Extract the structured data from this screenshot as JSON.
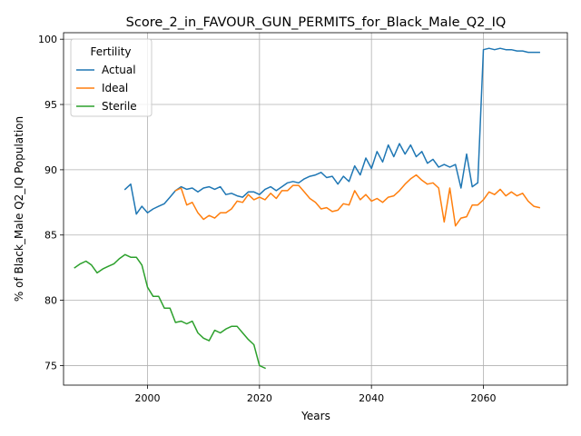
{
  "chart_data": {
    "type": "line",
    "title": "Score_2_in_FAVOUR_GUN_PERMITS_for_Black_Male_Q2_IQ",
    "xlabel": "Years",
    "ylabel": "% of Black_Male Q2_IQ Population",
    "xlim": [
      1985,
      2075
    ],
    "ylim": [
      73.5,
      100.5
    ],
    "xticks": [
      2000,
      2020,
      2040,
      2060
    ],
    "yticks": [
      75,
      80,
      85,
      90,
      95,
      100
    ],
    "grid": true,
    "legend": {
      "title": "Fertility",
      "placement": "top-left"
    },
    "series": [
      {
        "name": "Actual",
        "color": "#1f77b4",
        "x": [
          1996,
          1997,
          1998,
          1999,
          2000,
          2001,
          2002,
          2003,
          2004,
          2005,
          2006,
          2007,
          2008,
          2009,
          2010,
          2011,
          2012,
          2013,
          2014,
          2015,
          2016,
          2017,
          2018,
          2019,
          2020,
          2021,
          2022,
          2023,
          2024,
          2025,
          2026,
          2027,
          2028,
          2029,
          2030,
          2031,
          2032,
          2033,
          2034,
          2035,
          2036,
          2037,
          2038,
          2039,
          2040,
          2041,
          2042,
          2043,
          2044,
          2045,
          2046,
          2047,
          2048,
          2049,
          2050,
          2051,
          2052,
          2053,
          2054,
          2055,
          2056,
          2057,
          2058,
          2059,
          2060,
          2061,
          2062,
          2063,
          2064,
          2065,
          2066,
          2067,
          2068,
          2069,
          2070
        ],
        "values": [
          88.5,
          88.9,
          86.6,
          87.2,
          86.7,
          87.0,
          87.2,
          87.4,
          87.9,
          88.4,
          88.7,
          88.5,
          88.6,
          88.3,
          88.6,
          88.7,
          88.5,
          88.7,
          88.1,
          88.2,
          88.0,
          87.9,
          88.3,
          88.3,
          88.1,
          88.5,
          88.7,
          88.4,
          88.7,
          89.0,
          89.1,
          89.0,
          89.3,
          89.5,
          89.6,
          89.8,
          89.4,
          89.5,
          88.9,
          89.5,
          89.1,
          90.3,
          89.6,
          90.9,
          90.1,
          91.4,
          90.6,
          91.9,
          91.0,
          92.0,
          91.2,
          91.9,
          91.0,
          91.4,
          90.5,
          90.8,
          90.2,
          90.4,
          90.2,
          90.4,
          88.6,
          91.2,
          88.7,
          89.0,
          99.2,
          99.3,
          99.2,
          99.3,
          99.2,
          99.2,
          99.1,
          99.1,
          99.0,
          99.0,
          99.0
        ]
      },
      {
        "name": "Ideal",
        "color": "#ff7f0e",
        "x": [
          2005,
          2006,
          2007,
          2008,
          2009,
          2010,
          2011,
          2012,
          2013,
          2014,
          2015,
          2016,
          2017,
          2018,
          2019,
          2020,
          2021,
          2022,
          2023,
          2024,
          2025,
          2026,
          2027,
          2028,
          2029,
          2030,
          2031,
          2032,
          2033,
          2034,
          2035,
          2036,
          2037,
          2038,
          2039,
          2040,
          2041,
          2042,
          2043,
          2044,
          2045,
          2046,
          2047,
          2048,
          2049,
          2050,
          2051,
          2052,
          2053,
          2054,
          2055,
          2056,
          2057,
          2058,
          2059,
          2060,
          2061,
          2062,
          2063,
          2064,
          2065,
          2066,
          2067,
          2068,
          2069,
          2070
        ],
        "values": [
          88.4,
          88.6,
          87.3,
          87.5,
          86.7,
          86.2,
          86.5,
          86.3,
          86.7,
          86.7,
          87.0,
          87.6,
          87.5,
          88.1,
          87.7,
          87.9,
          87.7,
          88.2,
          87.8,
          88.4,
          88.4,
          88.8,
          88.8,
          88.3,
          87.8,
          87.5,
          87.0,
          87.1,
          86.8,
          86.9,
          87.4,
          87.3,
          88.4,
          87.7,
          88.1,
          87.6,
          87.8,
          87.5,
          87.9,
          88.0,
          88.4,
          88.9,
          89.3,
          89.6,
          89.2,
          88.9,
          89.0,
          88.6,
          86.0,
          88.6,
          85.7,
          86.3,
          86.4,
          87.3,
          87.3,
          87.7,
          88.3,
          88.1,
          88.5,
          88.0,
          88.3,
          88.0,
          88.2,
          87.6,
          87.2,
          87.1
        ]
      },
      {
        "name": "Sterile",
        "color": "#2ca02c",
        "x": [
          1987,
          1988,
          1989,
          1990,
          1991,
          1992,
          1993,
          1994,
          1995,
          1996,
          1997,
          1998,
          1999,
          2000,
          2001,
          2002,
          2003,
          2004,
          2005,
          2006,
          2007,
          2008,
          2009,
          2010,
          2011,
          2012,
          2013,
          2014,
          2015,
          2016,
          2017,
          2018,
          2019,
          2020,
          2021
        ],
        "values": [
          82.5,
          82.8,
          83.0,
          82.7,
          82.1,
          82.4,
          82.6,
          82.8,
          83.2,
          83.5,
          83.3,
          83.3,
          82.7,
          81.0,
          80.3,
          80.3,
          79.4,
          79.4,
          78.3,
          78.4,
          78.2,
          78.4,
          77.5,
          77.1,
          76.9,
          77.7,
          77.5,
          77.8,
          78.0,
          78.0,
          77.5,
          77.0,
          76.6,
          75.0,
          74.8
        ]
      }
    ]
  }
}
